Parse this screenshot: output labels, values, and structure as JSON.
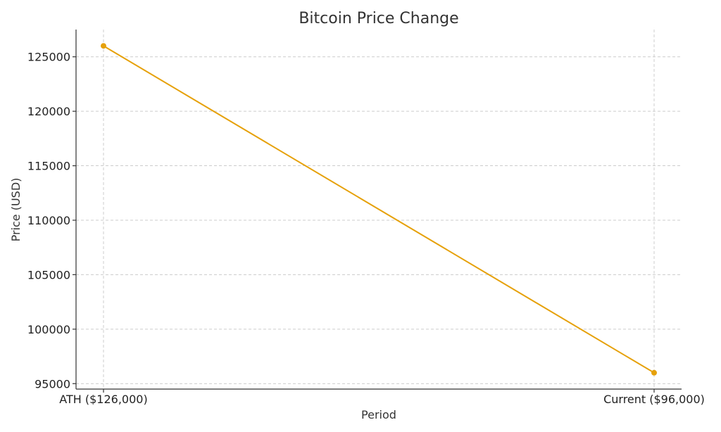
{
  "chart_data": {
    "type": "line",
    "title": "Bitcoin Price Change",
    "xlabel": "Period",
    "ylabel": "Price (USD)",
    "categories": [
      "ATH ($126,000)",
      "Current ($96,000)"
    ],
    "series": [
      {
        "values": [
          126000,
          96000
        ],
        "color": "#e6a10b"
      }
    ],
    "ylim": [
      94500,
      127500
    ],
    "yticks": [
      95000,
      100000,
      105000,
      110000,
      115000,
      120000,
      125000
    ],
    "grid": true,
    "markers": true
  }
}
